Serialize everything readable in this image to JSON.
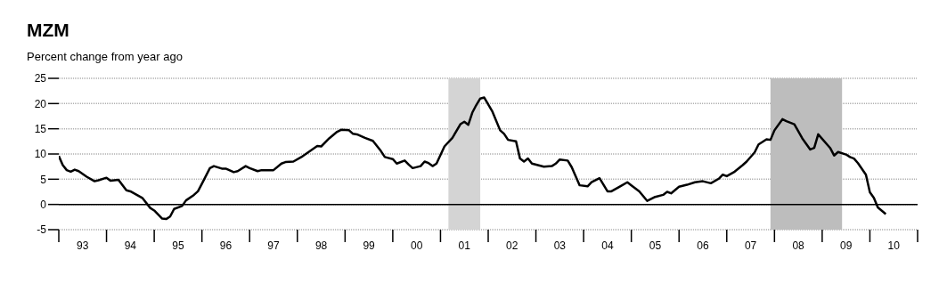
{
  "chart_data": {
    "type": "line",
    "title": "MZM",
    "subtitle": "Percent change from year ago",
    "x": [
      "1993-01",
      "1993-02",
      "1993-03",
      "1993-04",
      "1993-05",
      "1993-06",
      "1993-08",
      "1993-10",
      "1993-11",
      "1994-01",
      "1994-02",
      "1994-04",
      "1994-06",
      "1994-07",
      "1994-10",
      "1994-12",
      "1995-01",
      "1995-03",
      "1995-04",
      "1995-05",
      "1995-06",
      "1995-08",
      "1995-09",
      "1995-11",
      "1995-12",
      "1996-01",
      "1996-03",
      "1996-04",
      "1996-06",
      "1996-07",
      "1996-09",
      "1996-10",
      "1996-12",
      "1997-01",
      "1997-03",
      "1997-04",
      "1997-07",
      "1997-09",
      "1997-10",
      "1997-12",
      "1998-02",
      "1998-04",
      "1998-06",
      "1998-07",
      "1998-09",
      "1998-11",
      "1998-12",
      "1999-02",
      "1999-03",
      "1999-04",
      "1999-06",
      "1999-08",
      "1999-10",
      "1999-11",
      "2000-01",
      "2000-02",
      "2000-04",
      "2000-05",
      "2000-06",
      "2000-08",
      "2000-09",
      "2000-10",
      "2000-11",
      "2000-12",
      "2001-02",
      "2001-04",
      "2001-06",
      "2001-07",
      "2001-08",
      "2001-09",
      "2001-10",
      "2001-11",
      "2001-12",
      "2002-02",
      "2002-04",
      "2002-05",
      "2002-06",
      "2002-08",
      "2002-09",
      "2002-10",
      "2002-11",
      "2002-12",
      "2003-03",
      "2003-05",
      "2003-06",
      "2003-07",
      "2003-09",
      "2003-10",
      "2003-12",
      "2004-02",
      "2004-03",
      "2004-05",
      "2004-07",
      "2004-08",
      "2004-10",
      "2004-12",
      "2005-01",
      "2005-03",
      "2005-05",
      "2005-07",
      "2005-09",
      "2005-10",
      "2005-11",
      "2006-01",
      "2006-03",
      "2006-05",
      "2006-07",
      "2006-09",
      "2006-11",
      "2006-12",
      "2007-01",
      "2007-03",
      "2007-05",
      "2007-06",
      "2007-08",
      "2007-09",
      "2007-11",
      "2007-12",
      "2008-01",
      "2008-03",
      "2008-04",
      "2008-06",
      "2008-08",
      "2008-10",
      "2008-11",
      "2008-12",
      "2009-03",
      "2009-04",
      "2009-05",
      "2009-07",
      "2009-08",
      "2009-09",
      "2009-10",
      "2009-12",
      "2010-01",
      "2010-02",
      "2010-03",
      "2010-05"
    ],
    "values": [
      9.6,
      7.8,
      6.8,
      6.5,
      6.9,
      6.6,
      5.5,
      4.6,
      4.8,
      5.3,
      4.7,
      4.9,
      2.8,
      2.6,
      1.3,
      -0.7,
      -1.2,
      -2.8,
      -2.9,
      -2.4,
      -0.9,
      -0.3,
      0.8,
      1.9,
      2.6,
      4.1,
      7.2,
      7.6,
      7.1,
      7.1,
      6.4,
      6.6,
      7.6,
      7.2,
      6.6,
      6.8,
      6.8,
      8.1,
      8.4,
      8.5,
      9.4,
      10.5,
      11.6,
      11.5,
      13.1,
      14.4,
      14.8,
      14.7,
      14.0,
      13.9,
      13.2,
      12.6,
      10.6,
      9.4,
      9.0,
      8.1,
      8.7,
      7.9,
      7.2,
      7.6,
      8.5,
      8.2,
      7.6,
      8.1,
      11.5,
      13.2,
      15.9,
      16.4,
      15.8,
      18.2,
      19.7,
      21.0,
      21.2,
      18.5,
      14.7,
      14.0,
      12.8,
      12.5,
      9.1,
      8.5,
      9.1,
      8.1,
      7.5,
      7.6,
      8.1,
      8.9,
      8.7,
      7.4,
      3.8,
      3.6,
      4.4,
      5.2,
      2.6,
      2.6,
      3.5,
      4.4,
      3.8,
      2.6,
      0.7,
      1.5,
      1.9,
      2.5,
      2.2,
      3.5,
      3.9,
      4.4,
      4.6,
      4.2,
      5.1,
      5.9,
      5.6,
      6.5,
      7.8,
      8.5,
      10.3,
      11.9,
      12.9,
      12.8,
      14.7,
      16.9,
      16.5,
      15.9,
      13.1,
      10.9,
      11.2,
      13.9,
      11.2,
      9.7,
      10.4,
      9.9,
      9.4,
      9.1,
      8.2,
      5.9,
      2.4,
      1.3,
      -0.6,
      -1.9
    ],
    "color": "#000000",
    "xlim": [
      "1993-01",
      "2011-01"
    ],
    "xticks": [
      {
        "value": "1993-01",
        "label": null
      },
      {
        "value": "1993-07",
        "label": "93"
      },
      {
        "value": "1994-01",
        "label": null
      },
      {
        "value": "1994-07",
        "label": "94"
      },
      {
        "value": "1995-01",
        "label": null
      },
      {
        "value": "1995-07",
        "label": "95"
      },
      {
        "value": "1996-01",
        "label": null
      },
      {
        "value": "1996-07",
        "label": "96"
      },
      {
        "value": "1997-01",
        "label": null
      },
      {
        "value": "1997-07",
        "label": "97"
      },
      {
        "value": "1998-01",
        "label": null
      },
      {
        "value": "1998-07",
        "label": "98"
      },
      {
        "value": "1999-01",
        "label": null
      },
      {
        "value": "1999-07",
        "label": "99"
      },
      {
        "value": "2000-01",
        "label": null
      },
      {
        "value": "2000-07",
        "label": "00"
      },
      {
        "value": "2001-01",
        "label": null
      },
      {
        "value": "2001-07",
        "label": "01"
      },
      {
        "value": "2002-01",
        "label": null
      },
      {
        "value": "2002-07",
        "label": "02"
      },
      {
        "value": "2003-01",
        "label": null
      },
      {
        "value": "2003-07",
        "label": "03"
      },
      {
        "value": "2004-01",
        "label": null
      },
      {
        "value": "2004-07",
        "label": "04"
      },
      {
        "value": "2005-01",
        "label": null
      },
      {
        "value": "2005-07",
        "label": "05"
      },
      {
        "value": "2006-01",
        "label": null
      },
      {
        "value": "2006-07",
        "label": "06"
      },
      {
        "value": "2007-01",
        "label": null
      },
      {
        "value": "2007-07",
        "label": "07"
      },
      {
        "value": "2008-01",
        "label": null
      },
      {
        "value": "2008-07",
        "label": "08"
      },
      {
        "value": "2009-01",
        "label": null
      },
      {
        "value": "2009-07",
        "label": "09"
      },
      {
        "value": "2010-01",
        "label": null
      },
      {
        "value": "2010-07",
        "label": "10"
      },
      {
        "value": "2011-01",
        "label": null
      }
    ],
    "ylim": [
      -5,
      25
    ],
    "yticks": [
      -5,
      0,
      5,
      10,
      15,
      20,
      25
    ],
    "grid": "y",
    "ref_lines": [
      {
        "axis": "y",
        "value": 0,
        "color": "#000000"
      }
    ],
    "bands": [
      {
        "axis": "x",
        "from": "2001-03",
        "to": "2001-11",
        "color": "#d4d4d4"
      },
      {
        "axis": "x",
        "from": "2007-12",
        "to": "2009-06",
        "color": "#bdbdbd"
      }
    ]
  }
}
